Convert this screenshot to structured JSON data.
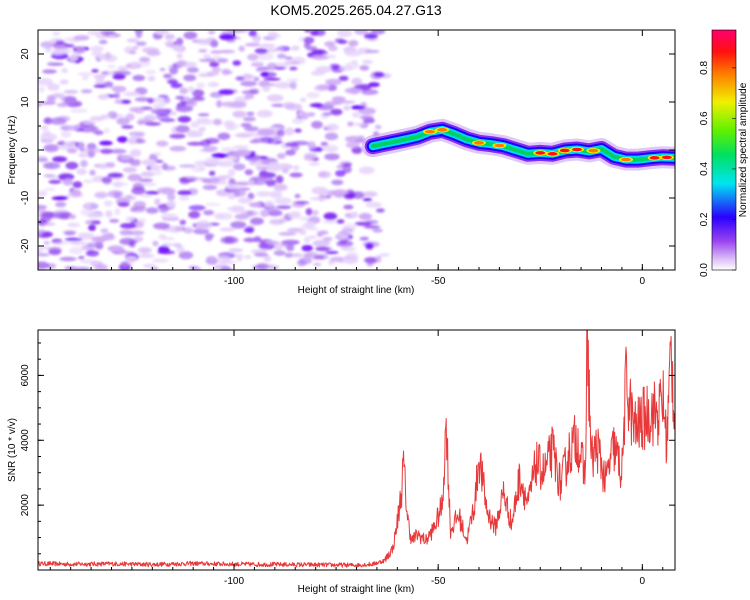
{
  "title": "KOM5.2025.265.04.27.G13",
  "chart_data": [
    {
      "type": "heatmap",
      "name": "spectrogram",
      "xlabel": "Height of straight line (km)",
      "ylabel": "Frequency (Hz)",
      "xlim": [
        -148,
        8
      ],
      "ylim": [
        -25,
        25
      ],
      "xticks": [
        -100,
        -50,
        0
      ],
      "yticks": [
        -20,
        -10,
        0,
        10,
        20
      ],
      "noise_region_x": [
        -148,
        -66
      ],
      "signal_track": {
        "x": [
          -66,
          -62,
          -58,
          -55,
          -52,
          -49,
          -46,
          -43,
          -40,
          -37,
          -34,
          -31,
          -28,
          -25,
          -22,
          -19,
          -16,
          -13,
          -10,
          -7,
          -4,
          -1,
          2,
          5,
          8
        ],
        "freq": [
          0.8,
          1.5,
          2.2,
          2.8,
          3.8,
          4.2,
          3.3,
          2.2,
          1.5,
          1.2,
          0.8,
          0.0,
          -0.8,
          -0.6,
          -0.8,
          -0.1,
          0.1,
          -0.3,
          0.2,
          -1.4,
          -2.0,
          -2.0,
          -1.7,
          -1.5,
          -1.6
        ]
      },
      "colorbar": {
        "label": "Normalized spectral amplitude",
        "range": [
          0.0,
          0.95
        ],
        "ticks": [
          "0.0",
          "0.2",
          "0.4",
          "0.6",
          "0.8"
        ]
      }
    },
    {
      "type": "line",
      "name": "snr",
      "xlabel": "Height of straight line (km)",
      "ylabel": "SNR (10 * v/v)",
      "xlim": [
        -148,
        8
      ],
      "ylim": [
        0,
        7400
      ],
      "xticks": [
        -100,
        -50,
        0
      ],
      "yticks": [
        2000,
        4000,
        6000
      ],
      "color": "#e8393a",
      "series": {
        "x": [
          -148,
          -140,
          -130,
          -120,
          -110,
          -100,
          -90,
          -80,
          -70,
          -66,
          -63,
          -61,
          -60,
          -59,
          -58.5,
          -57.5,
          -56.5,
          -55,
          -53,
          -51,
          -49,
          -48,
          -47,
          -45,
          -43,
          -41,
          -40,
          -38,
          -36,
          -34,
          -32,
          -30,
          -28,
          -26,
          -24,
          -22,
          -20,
          -18,
          -16,
          -14,
          -13.5,
          -12.5,
          -11,
          -9,
          -7,
          -5,
          -4,
          -2,
          0,
          2,
          4,
          5,
          6,
          7,
          8
        ],
        "y": [
          200,
          180,
          190,
          170,
          200,
          180,
          170,
          160,
          150,
          180,
          300,
          700,
          1500,
          2400,
          3300,
          1600,
          900,
          1100,
          900,
          1300,
          2000,
          4600,
          1200,
          1700,
          900,
          2100,
          3500,
          1800,
          1300,
          2400,
          1400,
          2900,
          2000,
          3300,
          3000,
          3700,
          2600,
          3600,
          4100,
          2800,
          7300,
          3400,
          3800,
          2700,
          3800,
          3000,
          5800,
          4300,
          4600,
          4900,
          4800,
          5300,
          3900,
          6800,
          4600
        ]
      }
    }
  ]
}
